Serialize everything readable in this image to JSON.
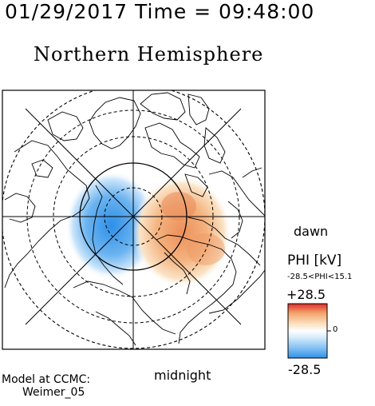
{
  "header": {
    "time_title": "01/29/2017 Time = 09:48:00",
    "hemisphere_title": "Northern Hemisphere"
  },
  "map": {
    "orientation_labels": {
      "dawn": "dawn",
      "midnight": "midnight"
    },
    "lobes": [
      {
        "sign": "negative",
        "color": "#3f9ae8",
        "label": "dusk-side negative cell"
      },
      {
        "sign": "positive",
        "color": "#ec9a62",
        "label": "dawn-side positive cell"
      }
    ]
  },
  "colorbar": {
    "title": "PHI [kV]",
    "range_text": "-28.5<PHI<15.1",
    "max_label": "+28.5",
    "min_label": "-28.5",
    "zero_label": "0",
    "max": 28.5,
    "min": -28.5,
    "colors": [
      "#2f8fe6",
      "#7dbdf2",
      "#d6ecfb",
      "#ffffff",
      "#fbe3c4",
      "#f3a36b",
      "#df2c2c"
    ]
  },
  "footer": {
    "model_line1": "Model at CCMC:",
    "model_line2": "Weimer_05"
  }
}
